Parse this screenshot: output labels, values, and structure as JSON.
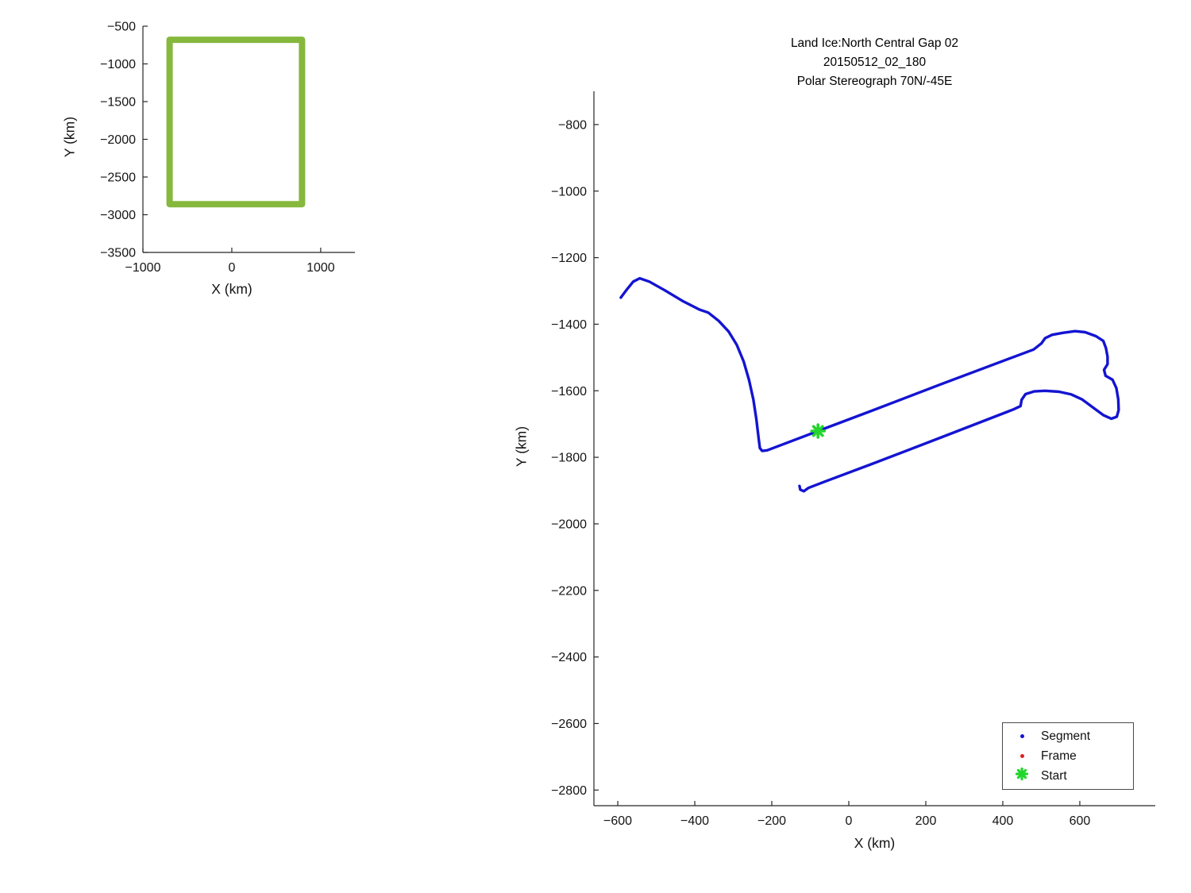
{
  "figure": {
    "background_color": "#ffffff",
    "axes_color": "#262626"
  },
  "chart_data": [
    {
      "type": "line",
      "name": "overview-map",
      "xlabel": "X (km)",
      "ylabel": "Y (km)",
      "xlim": [
        -1000,
        1385
      ],
      "ylim": [
        -500,
        -3500
      ],
      "xticks": [
        -1000,
        0,
        1000
      ],
      "yticks": [
        -500,
        -1000,
        -1500,
        -2000,
        -2500,
        -3000,
        -3500
      ],
      "grid": false,
      "series": [
        {
          "name": "coverage-box",
          "color": "#85b83c",
          "width": 8,
          "points": [
            [
              -700,
              -680
            ],
            [
              790,
              -680
            ],
            [
              790,
              -2860
            ],
            [
              -700,
              -2860
            ],
            [
              -700,
              -680
            ]
          ]
        }
      ]
    },
    {
      "type": "line",
      "name": "flight-track",
      "title_lines": [
        "Land Ice:North Central Gap 02",
        "20150512_02_180",
        "Polar Stereograph 70N/-45E"
      ],
      "xlabel": "X (km)",
      "ylabel": "Y (km)",
      "xlim": [
        -662,
        796
      ],
      "ylim": [
        -700,
        -2847
      ],
      "xticks": [
        -600,
        -400,
        -200,
        0,
        200,
        400,
        600
      ],
      "yticks": [
        -800,
        -1000,
        -1200,
        -1400,
        -1600,
        -1800,
        -2000,
        -2200,
        -2400,
        -2600,
        -2800
      ],
      "grid": false,
      "series": [
        {
          "name": "Segment",
          "color": "#1414d2",
          "width": 3.4,
          "points": [
            [
              -592,
              -1320
            ],
            [
              -578,
              -1298
            ],
            [
              -560,
              -1272
            ],
            [
              -543,
              -1262
            ],
            [
              -518,
              -1272
            ],
            [
              -478,
              -1298
            ],
            [
              -432,
              -1330
            ],
            [
              -388,
              -1356
            ],
            [
              -365,
              -1365
            ],
            [
              -338,
              -1390
            ],
            [
              -312,
              -1422
            ],
            [
              -291,
              -1462
            ],
            [
              -273,
              -1512
            ],
            [
              -259,
              -1568
            ],
            [
              -248,
              -1626
            ],
            [
              -240,
              -1686
            ],
            [
              -234,
              -1744
            ],
            [
              -231,
              -1772
            ],
            [
              -225,
              -1781
            ],
            [
              -212,
              -1779
            ],
            [
              -80,
              -1721
            ],
            [
              60,
              -1660
            ],
            [
              240,
              -1580
            ],
            [
              420,
              -1502
            ],
            [
              480,
              -1476
            ],
            [
              500,
              -1458
            ],
            [
              510,
              -1442
            ],
            [
              528,
              -1432
            ],
            [
              556,
              -1426
            ],
            [
              588,
              -1421
            ],
            [
              614,
              -1424
            ],
            [
              642,
              -1436
            ],
            [
              661,
              -1450
            ],
            [
              668,
              -1472
            ],
            [
              672,
              -1498
            ],
            [
              672,
              -1520
            ],
            [
              663,
              -1537
            ],
            [
              667,
              -1555
            ],
            [
              685,
              -1567
            ],
            [
              695,
              -1592
            ],
            [
              700,
              -1626
            ],
            [
              701,
              -1658
            ],
            [
              696,
              -1678
            ],
            [
              682,
              -1684
            ],
            [
              661,
              -1673
            ],
            [
              634,
              -1650
            ],
            [
              606,
              -1626
            ],
            [
              578,
              -1611
            ],
            [
              546,
              -1603
            ],
            [
              510,
              -1600
            ],
            [
              481,
              -1602
            ],
            [
              459,
              -1610
            ],
            [
              449,
              -1627
            ],
            [
              446,
              -1646
            ],
            [
              428,
              -1656
            ],
            [
              240,
              -1740
            ],
            [
              60,
              -1820
            ],
            [
              -60,
              -1872
            ],
            [
              -105,
              -1892
            ],
            [
              -117,
              -1902
            ],
            [
              -126,
              -1897
            ],
            [
              -128,
              -1886
            ]
          ]
        },
        {
          "name": "Frame",
          "color": "#dd2222",
          "width": 1.5,
          "points": []
        }
      ],
      "start_marker": {
        "x": -80,
        "y": -1721,
        "color": "#22d52c",
        "size": 16
      },
      "legend": {
        "position": "lower right",
        "items": [
          {
            "label": "Segment",
            "marker": "dot",
            "color": "#1414d2"
          },
          {
            "label": "Frame",
            "marker": "dot",
            "color": "#dd2222"
          },
          {
            "label": "Start",
            "marker": "asterisk",
            "color": "#22d52c"
          }
        ]
      }
    }
  ]
}
